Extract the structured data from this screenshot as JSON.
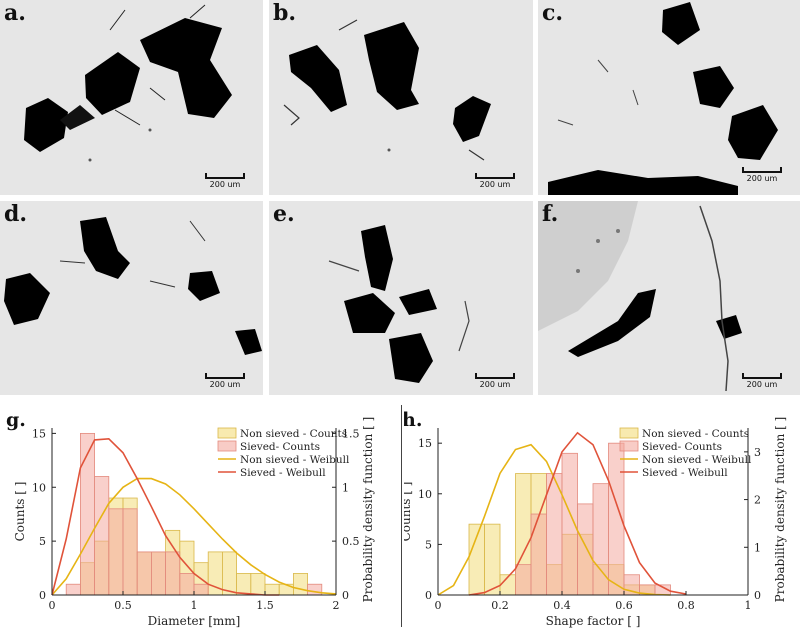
{
  "panels": [
    {
      "label": "a.",
      "scale": "200 um"
    },
    {
      "label": "b.",
      "scale": "200 um"
    },
    {
      "label": "c.",
      "scale": "200 um"
    },
    {
      "label": "d.",
      "scale": "200 um"
    },
    {
      "label": "e.",
      "scale": "200 um"
    },
    {
      "label": "f.",
      "scale": "200 um"
    }
  ],
  "chart_data": [
    {
      "type": "bar",
      "panel_label": "g.",
      "xlabel": "Diameter [mm]",
      "ylabel": "Counts [ ]",
      "y2label": "Probability density function [ ]",
      "xlim": [
        0,
        2
      ],
      "ylim": [
        0,
        15.5
      ],
      "y2lim": [
        0,
        1.55
      ],
      "xticks": [
        "0",
        "0.5",
        "1",
        "1.5",
        "2"
      ],
      "yticks": [
        "0",
        "5",
        "10",
        "15"
      ],
      "y2ticks": [
        "0",
        "0.5",
        "1",
        "1.5"
      ],
      "bin_width": 0.1,
      "series": [
        {
          "name": "Non sieved - Counts",
          "kind": "hist",
          "color": "#f3dc7a",
          "bin_starts": [
            0.2,
            0.3,
            0.4,
            0.5,
            0.6,
            0.7,
            0.8,
            0.9,
            1.0,
            1.1,
            1.2,
            1.3,
            1.4,
            1.5,
            1.6,
            1.7
          ],
          "values": [
            3,
            5,
            9,
            9,
            4,
            4,
            6,
            5,
            3,
            4,
            4,
            2,
            2,
            1,
            1,
            2
          ]
        },
        {
          "name": "Sieved- Counts",
          "kind": "hist",
          "color": "#f4aaa0",
          "bin_starts": [
            0.1,
            0.2,
            0.3,
            0.4,
            0.5,
            0.6,
            0.7,
            0.8,
            0.9,
            1.0,
            1.8
          ],
          "values": [
            1,
            15,
            11,
            8,
            8,
            4,
            4,
            4,
            2,
            1,
            1
          ]
        },
        {
          "name": "Non sieved - Weibull",
          "kind": "pdf",
          "color": "#e6b415",
          "x": [
            0,
            0.1,
            0.2,
            0.3,
            0.4,
            0.5,
            0.6,
            0.7,
            0.8,
            0.9,
            1.0,
            1.1,
            1.2,
            1.3,
            1.4,
            1.5,
            1.6,
            1.7,
            1.8,
            1.9,
            2.0
          ],
          "y": [
            0,
            0.15,
            0.38,
            0.62,
            0.85,
            1.0,
            1.08,
            1.08,
            1.03,
            0.93,
            0.8,
            0.66,
            0.52,
            0.39,
            0.28,
            0.19,
            0.12,
            0.07,
            0.04,
            0.02,
            0.01
          ]
        },
        {
          "name": "Sieved - Weibull",
          "kind": "pdf",
          "color": "#e0533a",
          "x": [
            0,
            0.1,
            0.2,
            0.3,
            0.4,
            0.5,
            0.6,
            0.7,
            0.8,
            0.9,
            1.0,
            1.1,
            1.2,
            1.3,
            1.4,
            1.5,
            1.6
          ],
          "y": [
            0,
            0.52,
            1.18,
            1.44,
            1.45,
            1.32,
            1.08,
            0.82,
            0.55,
            0.35,
            0.2,
            0.1,
            0.05,
            0.02,
            0.01,
            0,
            0
          ]
        }
      ]
    },
    {
      "type": "bar",
      "panel_label": "h.",
      "xlabel": "Shape factor [ ]",
      "ylabel": "Counts [ ]",
      "y2label": "Probability density function [ ]",
      "xlim": [
        0,
        1
      ],
      "ylim": [
        0,
        16.5
      ],
      "y2lim": [
        0,
        3.5
      ],
      "xticks": [
        "0",
        "0.2",
        "0.4",
        "0.6",
        "0.8",
        "1"
      ],
      "yticks": [
        "0",
        "5",
        "10",
        "15"
      ],
      "y2ticks": [
        "0",
        "1",
        "2",
        "3"
      ],
      "bin_width": 0.05,
      "series": [
        {
          "name": "Non sieved - Counts",
          "kind": "hist",
          "color": "#f3dc7a",
          "bin_starts": [
            0.1,
            0.15,
            0.2,
            0.25,
            0.3,
            0.35,
            0.4,
            0.45,
            0.5,
            0.55,
            0.6,
            0.65
          ],
          "values": [
            7,
            7,
            2,
            12,
            12,
            3,
            6,
            6,
            3,
            3,
            1,
            1
          ]
        },
        {
          "name": "Sieved- Counts",
          "kind": "hist",
          "color": "#f4aaa0",
          "bin_starts": [
            0.25,
            0.3,
            0.35,
            0.4,
            0.45,
            0.5,
            0.55,
            0.6,
            0.65,
            0.7
          ],
          "values": [
            3,
            8,
            12,
            14,
            9,
            11,
            15,
            2,
            1,
            1
          ]
        },
        {
          "name": "Non sieved - Weibull",
          "kind": "pdf",
          "color": "#e6b415",
          "x": [
            0,
            0.05,
            0.1,
            0.15,
            0.2,
            0.25,
            0.3,
            0.35,
            0.4,
            0.45,
            0.5,
            0.55,
            0.6,
            0.65,
            0.7,
            0.75
          ],
          "y": [
            0,
            0.2,
            0.8,
            1.65,
            2.55,
            3.05,
            3.15,
            2.8,
            2.1,
            1.35,
            0.72,
            0.32,
            0.12,
            0.04,
            0.01,
            0
          ]
        },
        {
          "name": "Sieved - Weibull",
          "kind": "pdf",
          "color": "#e0533a",
          "x": [
            0.1,
            0.15,
            0.2,
            0.25,
            0.3,
            0.35,
            0.4,
            0.45,
            0.5,
            0.55,
            0.6,
            0.65,
            0.7,
            0.75,
            0.8
          ],
          "y": [
            0,
            0.05,
            0.2,
            0.55,
            1.2,
            2.1,
            3.0,
            3.4,
            3.15,
            2.4,
            1.45,
            0.68,
            0.25,
            0.08,
            0.02
          ]
        }
      ]
    }
  ]
}
